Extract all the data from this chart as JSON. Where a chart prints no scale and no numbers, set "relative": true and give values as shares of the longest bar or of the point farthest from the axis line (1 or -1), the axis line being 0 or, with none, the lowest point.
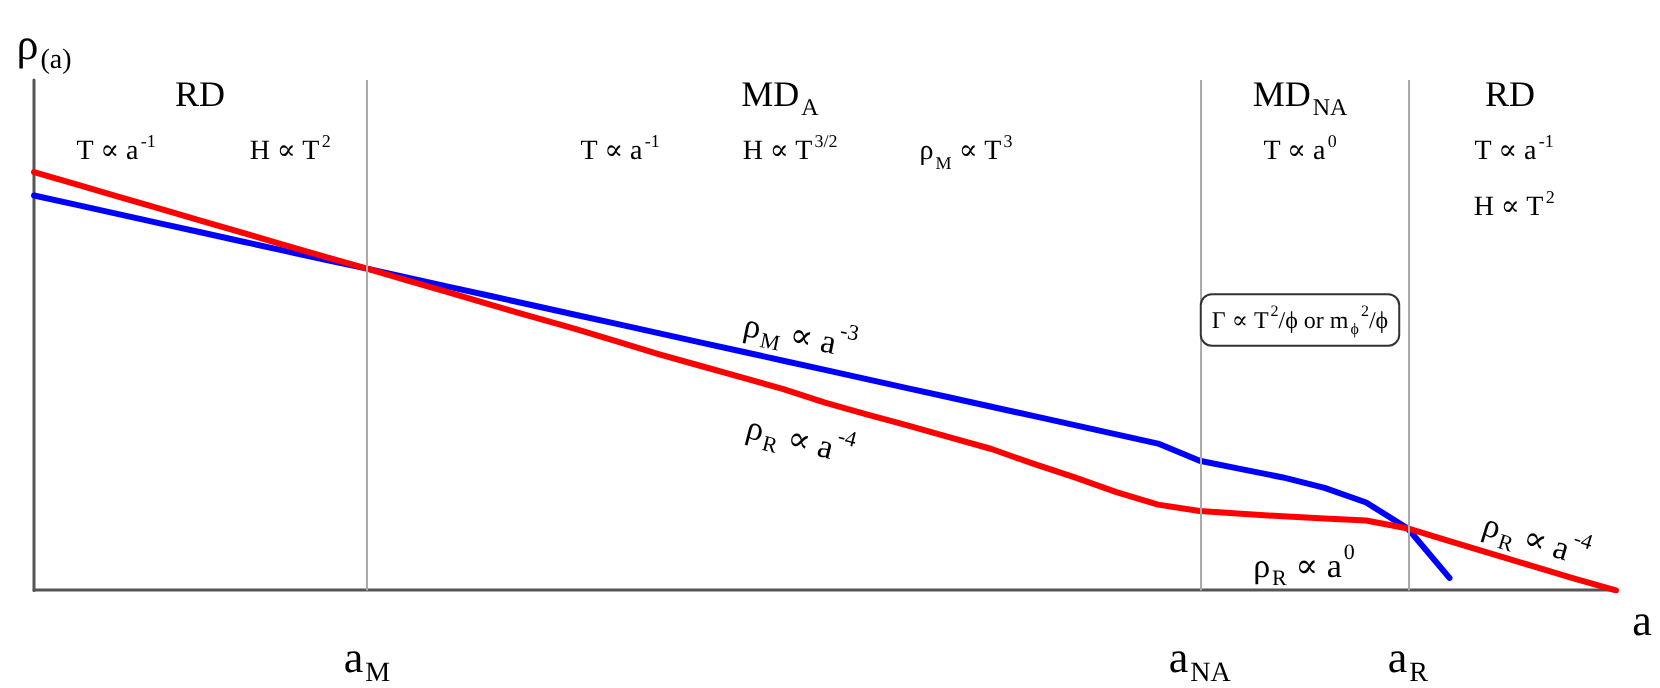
{
  "chart_data": {
    "type": "line",
    "relative": true,
    "xlabel": "a",
    "ylabel": "ρ$_{(a)}$",
    "categories": [
      null,
      null,
      null,
      null,
      null,
      null,
      null,
      null,
      "a$_{M}$",
      null,
      null,
      null,
      null,
      null,
      null,
      null,
      null,
      null,
      null,
      null,
      null,
      null,
      null,
      null,
      null,
      null,
      null,
      null,
      "a$_{NA}$",
      null,
      null,
      null,
      null,
      "a$_{R}$",
      null,
      null,
      null,
      null,
      null
    ],
    "series": [
      {
        "name": "ρ$_{M}$ ∝ a$^{-3}$",
        "color": "#0000ff",
        "values": [
          0.944,
          0.922,
          0.9,
          0.878,
          0.856,
          0.834,
          0.812,
          0.79,
          0.769,
          0.747,
          0.725,
          0.703,
          0.681,
          0.659,
          0.637,
          0.615,
          0.593,
          0.571,
          0.549,
          0.527,
          0.505,
          0.483,
          0.461,
          0.439,
          0.417,
          0.395,
          0.373,
          0.351,
          0.31,
          0.29,
          0.27,
          0.245,
          0.21,
          0.148,
          0.03,
          null,
          null,
          null,
          null
        ]
      },
      {
        "name": "ρ$_{R}$ ∝ a$^{-4}$",
        "color": "#ff0000",
        "values": [
          1.0,
          0.971,
          0.942,
          0.913,
          0.884,
          0.855,
          0.826,
          0.797,
          0.769,
          0.74,
          0.711,
          0.682,
          0.653,
          0.625,
          0.595,
          0.565,
          0.537,
          0.509,
          0.481,
          0.449,
          0.421,
          0.394,
          0.366,
          0.338,
          0.303,
          0.27,
          0.235,
          0.205,
          0.19,
          0.183,
          0.177,
          0.172,
          0.167,
          0.148,
          0.118,
          0.088,
          0.058,
          0.028,
          0
        ]
      }
    ],
    "ref_lines": [
      {
        "axis": "x",
        "value": "a$_{M}$",
        "color": "#aaaaaa"
      },
      {
        "axis": "x",
        "value": "a$_{NA}$",
        "color": "#aaaaaa"
      },
      {
        "axis": "x",
        "value": "a$_{R}$",
        "color": "#aaaaaa"
      }
    ],
    "annotations": [
      "RD",
      "T ∝ a$^{-1}$",
      "H ∝ T$^{2}$",
      "MD$_{A}$",
      "T ∝ a$^{-1}$",
      "H ∝ T$^{3/2}$",
      "ρ$_{M}$ ∝ T$^{3}$",
      "MD$_{NA}$",
      "T ∝ a$^{0}$",
      "RD",
      "T ∝ a$^{-1}$",
      "H ∝ T$^{2}$",
      "Γ ∝ T$^{2}$/ϕ or m$_{ϕ}$$^{2}$/ϕ",
      "ρ$_{R}$ ∝ a$^{0}$",
      "ρ$_{R}$ ∝ a$^{-4}$"
    ],
    "grid": false,
    "legend": false,
    "marker": "none",
    "line_style": "solid"
  }
}
